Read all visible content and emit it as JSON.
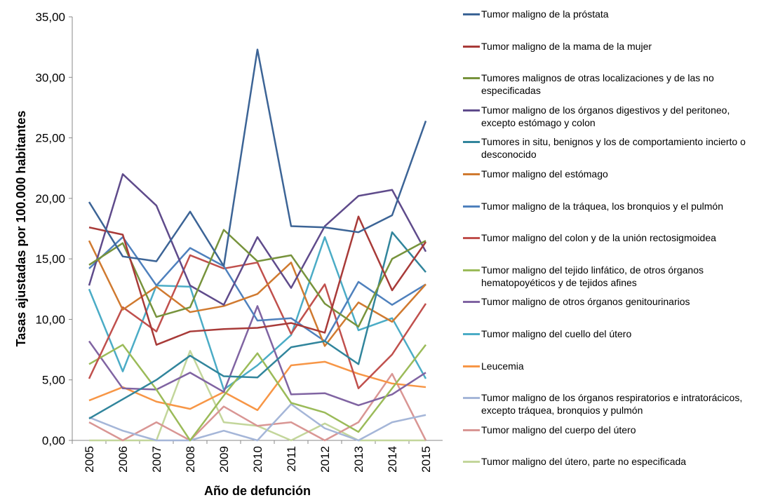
{
  "chart_data": {
    "type": "line",
    "y_label": "Tasas ajustadas por 100.000 habitantes",
    "x_label": "Año de defunción",
    "categories": [
      "2005",
      "2006",
      "2007",
      "2008",
      "2009",
      "2010",
      "2011",
      "2012",
      "2013",
      "2014",
      "2015"
    ],
    "ylim": [
      0,
      35
    ],
    "yticks": [
      {
        "value": 0,
        "label": "0,00"
      },
      {
        "value": 5,
        "label": "5,00"
      },
      {
        "value": 10,
        "label": "10,00"
      },
      {
        "value": 15,
        "label": "15,00"
      },
      {
        "value": 20,
        "label": "20,00"
      },
      {
        "value": 25,
        "label": "25,00"
      },
      {
        "value": 30,
        "label": "30,00"
      },
      {
        "value": 35,
        "label": "35,00"
      }
    ],
    "grid": false,
    "legend": "right",
    "series": [
      {
        "name": "Tumor maligno de la próstata",
        "color": "#3c6496",
        "values": [
          19.7,
          15.2,
          14.8,
          18.9,
          14.4,
          32.3,
          17.7,
          17.6,
          17.2,
          18.6,
          26.4
        ]
      },
      {
        "name": "Tumor maligno de la mama de la mujer",
        "color": "#a83a38",
        "values": [
          17.6,
          17.0,
          7.9,
          9.0,
          9.2,
          9.3,
          9.7,
          8.9,
          18.5,
          12.4,
          16.4
        ]
      },
      {
        "name": "Tumores malignos de otras localizaciones y de las no especificadas",
        "color": "#77933c",
        "values": [
          14.5,
          16.3,
          10.2,
          11.0,
          17.4,
          14.8,
          15.3,
          11.3,
          9.4,
          15.0,
          16.5
        ]
      },
      {
        "name": "Tumor maligno de los órganos digestivos y del peritoneo, excepto estómago y colon",
        "color": "#5f4b8b",
        "values": [
          12.8,
          22.0,
          19.4,
          12.8,
          11.2,
          16.8,
          12.6,
          17.7,
          20.2,
          20.7,
          15.6
        ]
      },
      {
        "name": "Tumores in situ, benignos y los de comportamiento incierto o desconocido",
        "color": "#31859c",
        "values": [
          1.8,
          3.4,
          5.0,
          7.0,
          5.3,
          5.2,
          7.7,
          8.2,
          6.3,
          17.2,
          13.9
        ]
      },
      {
        "name": "Tumor maligno del estómago",
        "color": "#d07a30",
        "values": [
          16.5,
          10.8,
          12.7,
          10.6,
          11.1,
          12.1,
          14.7,
          7.8,
          11.4,
          9.8,
          12.9
        ]
      },
      {
        "name": "Tumor maligno de la tráquea, los bronquios y el pulmón",
        "color": "#4f81bd",
        "values": [
          14.2,
          16.8,
          12.8,
          15.9,
          14.4,
          9.9,
          10.1,
          8.2,
          13.1,
          11.2,
          12.9
        ]
      },
      {
        "name": "Tumor maligno del colon y de la unión rectosigmoidea",
        "color": "#c0504d",
        "values": [
          5.1,
          11.0,
          9.0,
          15.3,
          14.2,
          14.7,
          8.8,
          12.9,
          4.3,
          7.1,
          11.3
        ]
      },
      {
        "name": "Tumor maligno del tejido linfático, de otros órganos hematopoyéticos y de tejidos afines",
        "color": "#9bbb59",
        "values": [
          6.3,
          7.9,
          4.2,
          0.0,
          3.7,
          7.2,
          3.1,
          2.3,
          0.7,
          4.3,
          7.9
        ]
      },
      {
        "name": "Tumor maligno de otros órganos genitourinarios",
        "color": "#8064a2",
        "values": [
          8.2,
          4.3,
          4.2,
          5.6,
          4.0,
          11.1,
          3.8,
          3.9,
          2.9,
          3.8,
          5.6
        ]
      },
      {
        "name": "Tumor maligno del cuello del útero",
        "color": "#4bacc6",
        "values": [
          12.5,
          5.7,
          12.8,
          12.7,
          4.2,
          6.2,
          8.7,
          16.8,
          9.1,
          10.1,
          5.1
        ]
      },
      {
        "name": "Leucemia",
        "color": "#f79646",
        "values": [
          3.3,
          4.4,
          3.2,
          2.6,
          4.0,
          2.5,
          6.2,
          6.5,
          5.5,
          4.7,
          4.4
        ]
      },
      {
        "name": "Tumor maligno de los órganos respiratorios e intratorácicos, excepto tráquea, bronquios y pulmón",
        "color": "#a5b6d8",
        "values": [
          1.9,
          0.8,
          0.0,
          0.0,
          0.8,
          0.0,
          3.0,
          1.0,
          0.0,
          1.5,
          2.1
        ]
      },
      {
        "name": "Tumor maligno del cuerpo del útero",
        "color": "#d99694",
        "values": [
          1.5,
          0.0,
          1.5,
          0.0,
          2.8,
          1.2,
          1.5,
          0.0,
          1.5,
          5.5,
          0.0
        ]
      },
      {
        "name": "Tumor maligno del útero, parte no especificada",
        "color": "#c3d69b",
        "values": [
          0.0,
          0.0,
          0.0,
          7.4,
          1.5,
          1.2,
          0.0,
          1.4,
          0.0,
          0.0,
          0.0
        ]
      }
    ]
  }
}
